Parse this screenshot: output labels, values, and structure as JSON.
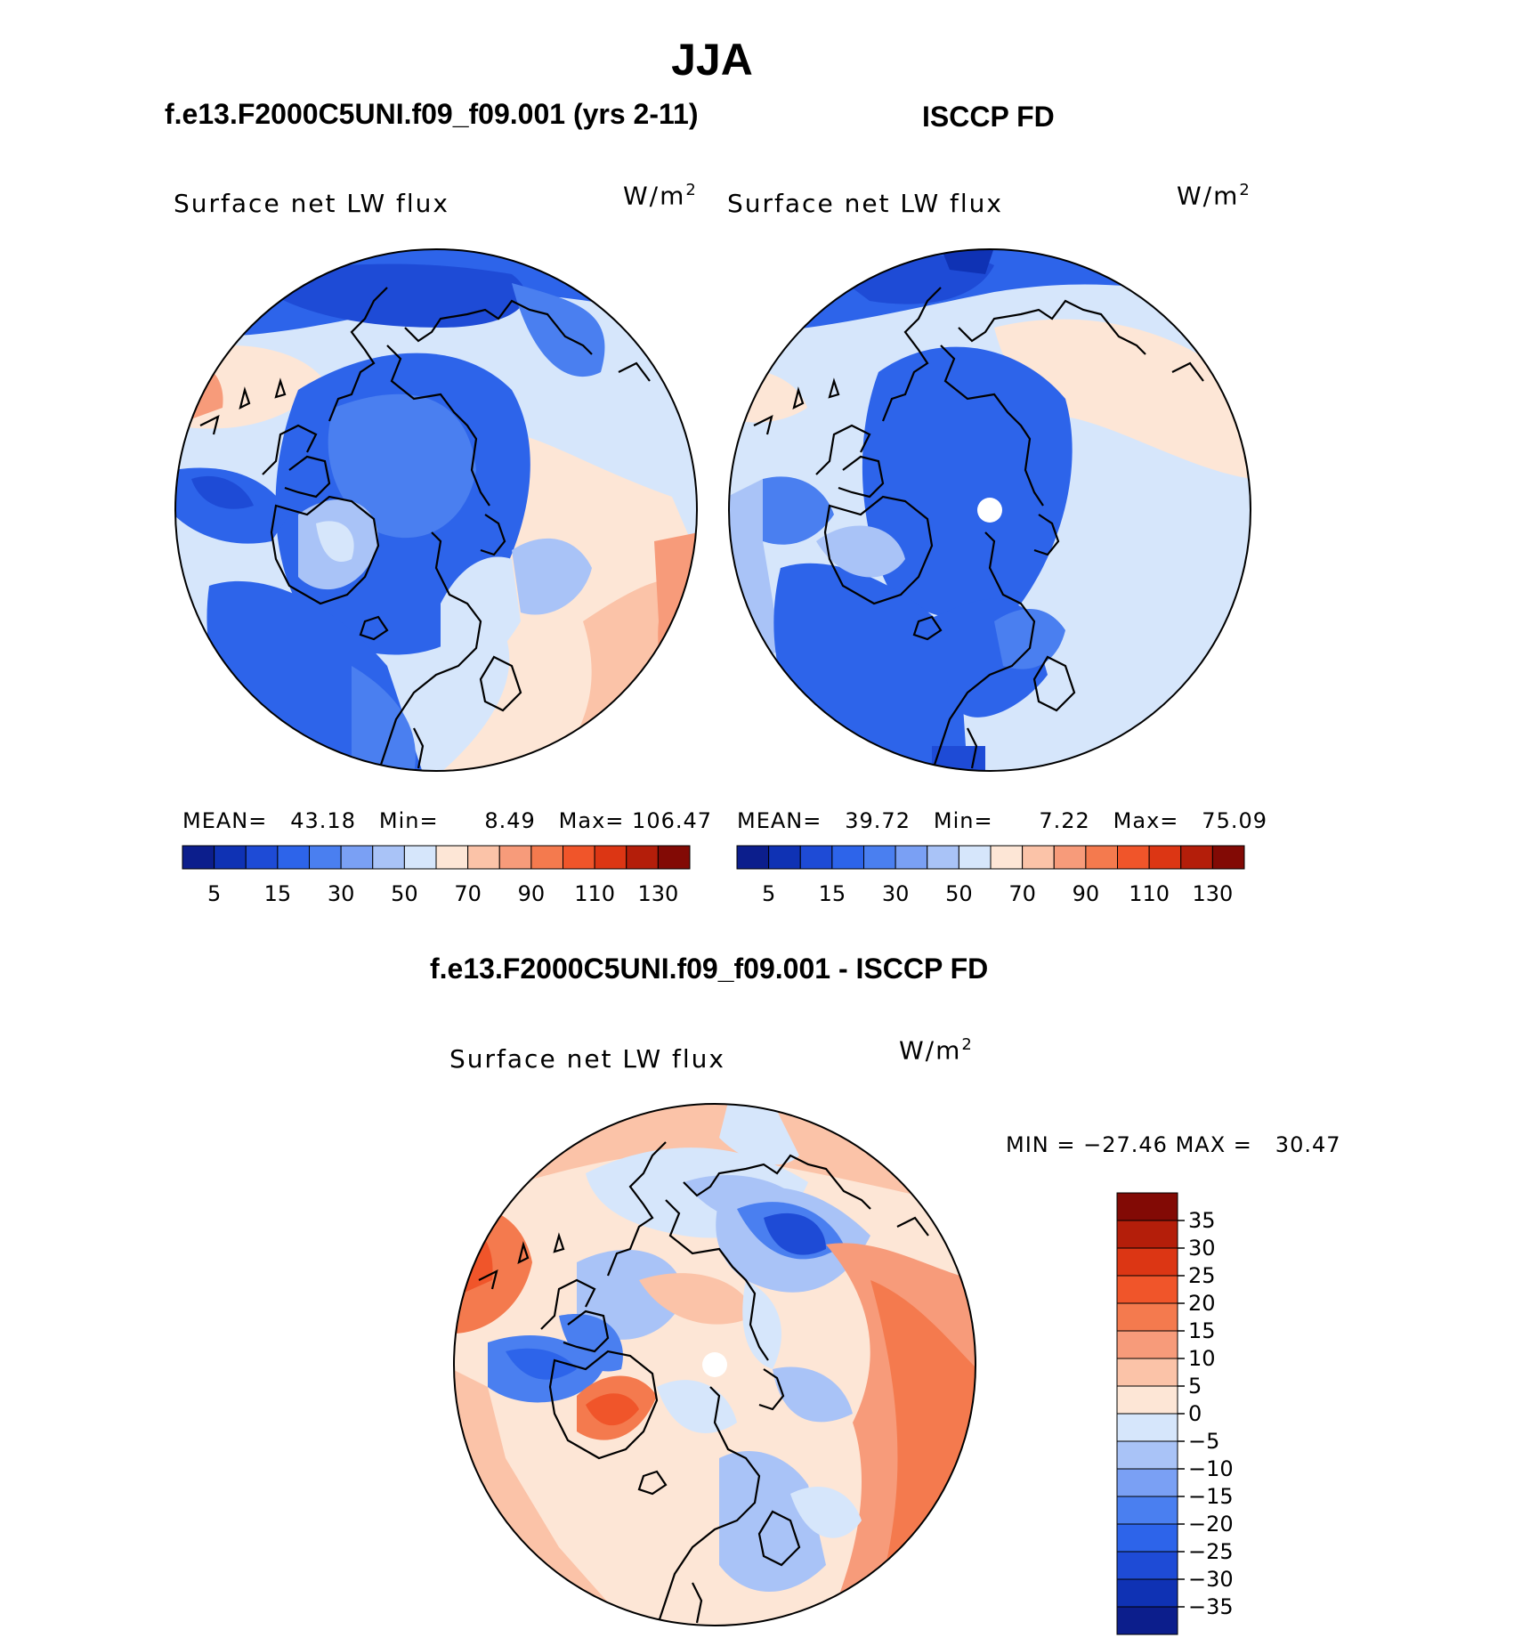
{
  "figure": {
    "season_title": "JJA",
    "panel_titles": {
      "model": "f.e13.F2000C5UNI.f09_f09.001 (yrs 2-11)",
      "obs": "ISCCP FD",
      "diff": "f.e13.F2000C5UNI.f09_f09.001 - ISCCP FD"
    },
    "variable": "Surface net LW flux",
    "units_base": "W/m",
    "units_exp": "2",
    "model_stats": {
      "mean_label": "MEAN=",
      "mean": "43.18",
      "min_label": "Min=",
      "min": "8.49",
      "max_label": "Max=",
      "max": "106.47"
    },
    "obs_stats": {
      "mean_label": "MEAN=",
      "mean": "39.72",
      "min_label": "Min=",
      "min": "7.22",
      "max_label": "Max=",
      "max": "75.09"
    },
    "diff_stats": {
      "min_label": "MIN =",
      "min": "−27.46",
      "max_label": "MAX =",
      "max": "30.47"
    }
  },
  "chart_data": [
    {
      "type": "heatmap",
      "projection": "north polar stereographic",
      "title": "f.e13.F2000C5UNI.f09_f09.001 (yrs 2-11)",
      "variable": "Surface net LW flux",
      "units": "W/m2",
      "colorbar": {
        "orientation": "horizontal",
        "levels": [
          5,
          10,
          15,
          20,
          30,
          40,
          50,
          60,
          70,
          80,
          90,
          100,
          110,
          120,
          130
        ],
        "tick_labels": [
          "5",
          "15",
          "30",
          "50",
          "70",
          "90",
          "110",
          "130"
        ],
        "colors": [
          "#0c1e8c",
          "#0f32b4",
          "#1e4bd6",
          "#2d64ea",
          "#4a7ff0",
          "#7aa0f4",
          "#a9c3f7",
          "#d6e6fb",
          "#fde6d6",
          "#fbc3a8",
          "#f79b7a",
          "#f47a4e",
          "#f0552a",
          "#dc3614",
          "#b41e0a",
          "#820a05"
        ]
      },
      "stats": {
        "mean": 43.18,
        "min": 8.49,
        "max": 106.47
      }
    },
    {
      "type": "heatmap",
      "projection": "north polar stereographic",
      "title": "ISCCP FD",
      "variable": "Surface net LW flux",
      "units": "W/m2",
      "colorbar": {
        "orientation": "horizontal",
        "levels": [
          5,
          10,
          15,
          20,
          30,
          40,
          50,
          60,
          70,
          80,
          90,
          100,
          110,
          120,
          130
        ],
        "tick_labels": [
          "5",
          "15",
          "30",
          "50",
          "70",
          "90",
          "110",
          "130"
        ],
        "colors": [
          "#0c1e8c",
          "#0f32b4",
          "#1e4bd6",
          "#2d64ea",
          "#4a7ff0",
          "#7aa0f4",
          "#a9c3f7",
          "#d6e6fb",
          "#fde6d6",
          "#fbc3a8",
          "#f79b7a",
          "#f47a4e",
          "#f0552a",
          "#dc3614",
          "#b41e0a",
          "#820a05"
        ]
      },
      "stats": {
        "mean": 39.72,
        "min": 7.22,
        "max": 75.09
      }
    },
    {
      "type": "heatmap",
      "projection": "north polar stereographic",
      "title": "f.e13.F2000C5UNI.f09_f09.001 - ISCCP FD",
      "variable": "Surface net LW flux",
      "units": "W/m2",
      "colorbar": {
        "orientation": "vertical",
        "levels": [
          -35,
          -30,
          -25,
          -20,
          -15,
          -10,
          -5,
          0,
          5,
          10,
          15,
          20,
          25,
          30,
          35
        ],
        "tick_labels": [
          "35",
          "30",
          "25",
          "20",
          "15",
          "10",
          "5",
          "0",
          "−5",
          "−10",
          "−15",
          "−20",
          "−25",
          "−30",
          "−35"
        ],
        "colors": [
          "#820a05",
          "#b41e0a",
          "#dc3614",
          "#f0552a",
          "#f47a4e",
          "#f79b7a",
          "#fbc3a8",
          "#fde6d6",
          "#d6e6fb",
          "#a9c3f7",
          "#7aa0f4",
          "#4a7ff0",
          "#2d64ea",
          "#1e4bd6",
          "#0f32b4",
          "#0c1e8c"
        ]
      },
      "stats": {
        "min": -27.46,
        "max": 30.47
      }
    }
  ]
}
